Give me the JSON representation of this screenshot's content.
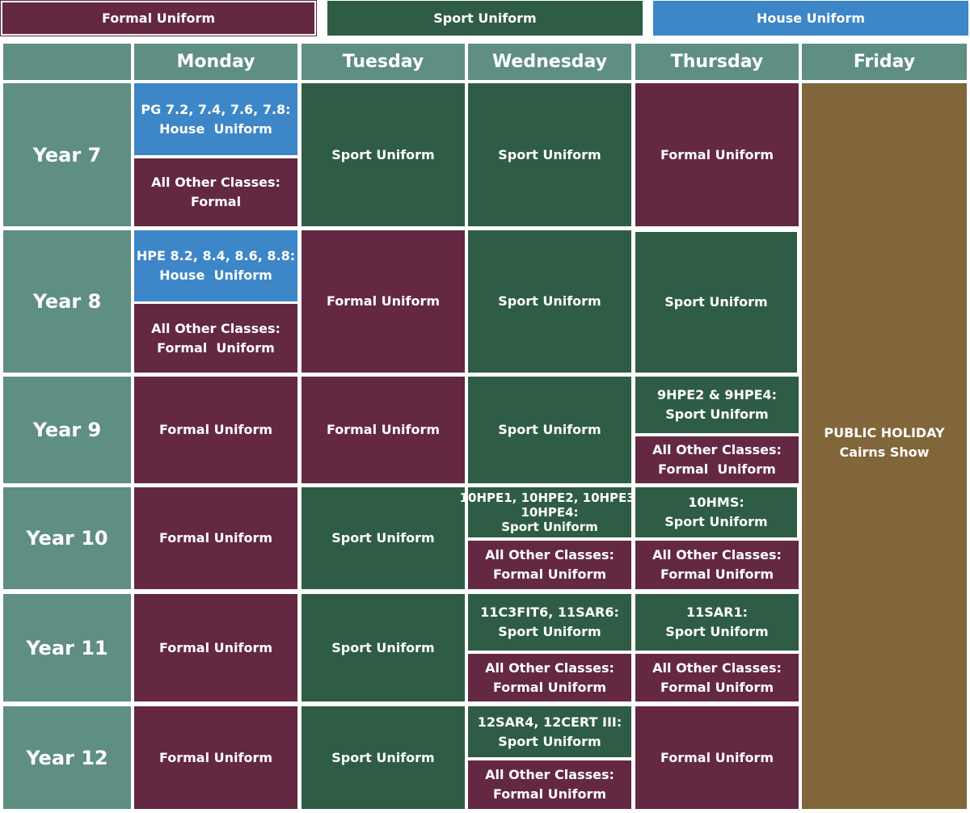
{
  "legend": {
    "formal": "Formal Uniform",
    "sport": "Sport Uniform",
    "house": "House Uniform"
  },
  "colors": {
    "formal": "#642843",
    "sport": "#2f5c45",
    "house": "#3d86c8",
    "holiday": "#80663a",
    "header": "#5f8e83"
  },
  "days": {
    "mon": "Monday",
    "tue": "Tuesday",
    "wed": "Wednesday",
    "thu": "Thursday",
    "fri": "Friday"
  },
  "years": {
    "y7": "Year 7",
    "y8": "Year 8",
    "y9": "Year 9",
    "y10": "Year 10",
    "y11": "Year 11",
    "y12": "Year 12"
  },
  "cells": {
    "y7_mon_a": [
      "PG 7.2, 7.4, 7.6, 7.8:",
      "House  Uniform"
    ],
    "y7_mon_b": [
      "All Other Classes:",
      "Formal"
    ],
    "y7_tue": "Sport Uniform",
    "y7_wed": "Sport Uniform",
    "y7_thu": "Formal Uniform",
    "y8_mon_a": [
      "HPE 8.2, 8.4, 8.6, 8.8:",
      "House  Uniform"
    ],
    "y8_mon_b": [
      "All Other Classes:",
      "Formal  Uniform"
    ],
    "y8_tue": "Formal Uniform",
    "y8_wed": "Sport Uniform",
    "y8_thu": "Sport Uniform",
    "y9_mon": "Formal Uniform",
    "y9_tue": "Formal Uniform",
    "y9_wed": "Sport Uniform",
    "y9_thu_a": [
      "9HPE2 & 9HPE4:",
      "Sport Uniform"
    ],
    "y9_thu_b": [
      "All Other Classes:",
      "Formal  Uniform"
    ],
    "y10_mon": "Formal Uniform",
    "y10_tue": "Sport Uniform",
    "y10_wed_a": [
      "10HPE1, 10HPE2, 10HPE3,",
      "10HPE4:",
      "Sport Uniform"
    ],
    "y10_wed_b": [
      "All Other Classes:",
      "Formal Uniform"
    ],
    "y10_thu_a": [
      "10HMS:",
      "Sport Uniform"
    ],
    "y10_thu_b": [
      "All Other Classes:",
      "Formal Uniform"
    ],
    "y11_mon": "Formal Uniform",
    "y11_tue": "Sport Uniform",
    "y11_wed_a": [
      "11C3FIT6, 11SAR6:",
      "Sport Uniform"
    ],
    "y11_wed_b": [
      "All Other Classes:",
      "Formal Uniform"
    ],
    "y11_thu_a": [
      "11SAR1:",
      "Sport Uniform"
    ],
    "y11_thu_b": [
      "All Other Classes:",
      "Formal Uniform"
    ],
    "y12_mon": "Formal Uniform",
    "y12_tue": "Sport Uniform",
    "y12_wed_a": [
      "12SAR4, 12CERT III:",
      "Sport Uniform"
    ],
    "y12_wed_b": [
      "All Other Classes:",
      "Formal Uniform"
    ],
    "y12_thu": "Formal Uniform",
    "fri_holiday": [
      "PUBLIC HOLIDAY",
      "Cairns Show"
    ]
  }
}
